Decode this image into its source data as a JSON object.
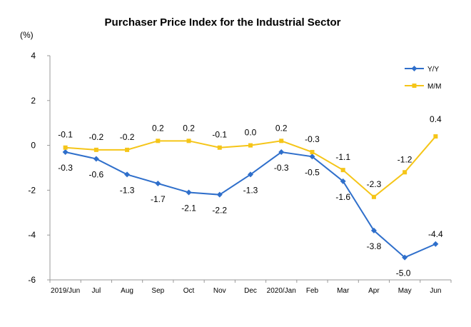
{
  "chart_data": {
    "type": "line",
    "title": "Purchaser Price Index for the Industrial  Sector",
    "unit_label": "(%)",
    "categories": [
      "2019/Jun",
      "Jul",
      "Aug",
      "Sep",
      "Oct",
      "Nov",
      "Dec",
      "2020/Jan",
      "Feb",
      "Mar",
      "Apr",
      "May",
      "Jun"
    ],
    "series": [
      {
        "name": "Y/Y",
        "color": "#2F6FCB",
        "marker": "diamond",
        "values": [
          -0.3,
          -0.6,
          -1.3,
          -1.7,
          -2.1,
          -2.2,
          -1.3,
          -0.3,
          -0.5,
          -1.6,
          -3.8,
          -5.0,
          -4.4
        ],
        "labels": [
          "-0.3",
          "-0.6",
          "-1.3",
          "-1.7",
          "-2.1",
          "-2.2",
          "-1.3",
          "-0.3",
          "-0.5",
          "-1.6",
          "-3.8",
          "-5.0",
          "-4.4"
        ]
      },
      {
        "name": "M/M",
        "color": "#F5C518",
        "marker": "square",
        "values": [
          -0.1,
          -0.2,
          -0.2,
          0.2,
          0.2,
          -0.1,
          0.0,
          0.2,
          -0.3,
          -1.1,
          -2.3,
          -1.2,
          0.4
        ],
        "labels": [
          "-0.1",
          "-0.2",
          "-0.2",
          "0.2",
          "0.2",
          "-0.1",
          "0.0",
          "0.2",
          "-0.3",
          "-1.1",
          "-2.3",
          "-1.2",
          "0.4"
        ]
      }
    ],
    "ylim": [
      -6,
      4
    ],
    "yticks": [
      4,
      2,
      0,
      -2,
      -4,
      -6
    ],
    "ytick_labels": [
      "4",
      "2",
      "0",
      "-2",
      "-4",
      "-6"
    ],
    "grid": false,
    "legend": "top-right"
  }
}
